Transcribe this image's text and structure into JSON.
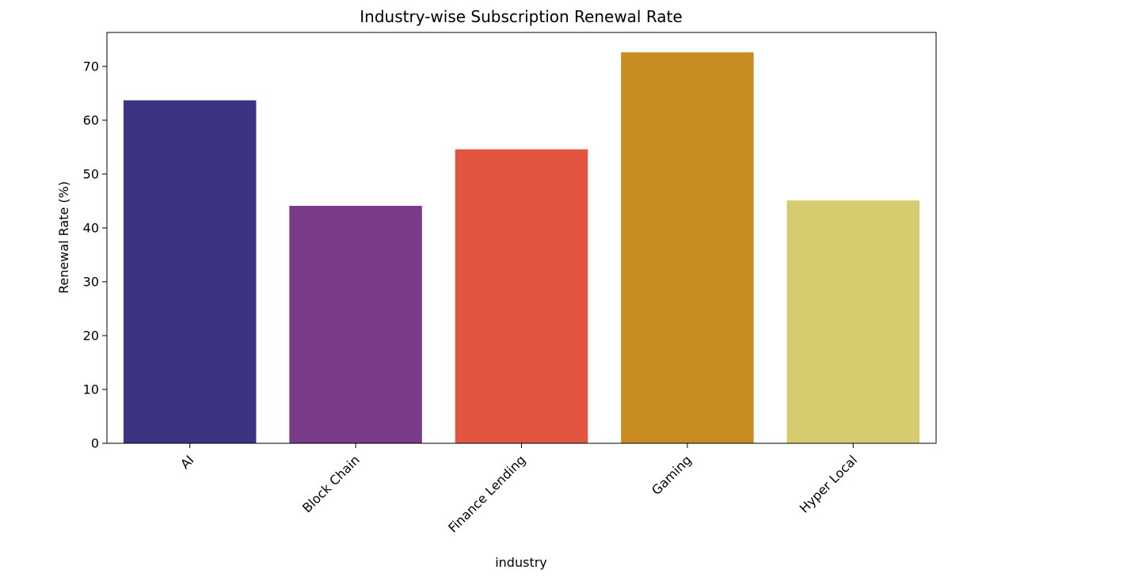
{
  "chart_data": {
    "type": "bar",
    "title": "Industry-wise Subscription Renewal Rate",
    "xlabel": "industry",
    "ylabel": "Renewal Rate (%)",
    "categories": [
      "AI",
      "Block Chain",
      "Finance Lending",
      "Gaming",
      "Hyper Local"
    ],
    "values": [
      63.7,
      44.1,
      54.6,
      72.6,
      45.1
    ],
    "colors": [
      "#3b3282",
      "#793b88",
      "#e25641",
      "#c98c22",
      "#d5cc70"
    ],
    "ylim": [
      0,
      76.3
    ],
    "yticks": [
      0,
      10,
      20,
      30,
      40,
      50,
      60,
      70
    ],
    "ytick_labels": [
      "0",
      "10",
      "20",
      "30",
      "40",
      "50",
      "60",
      "70"
    ],
    "grid": false,
    "legend": "none"
  }
}
